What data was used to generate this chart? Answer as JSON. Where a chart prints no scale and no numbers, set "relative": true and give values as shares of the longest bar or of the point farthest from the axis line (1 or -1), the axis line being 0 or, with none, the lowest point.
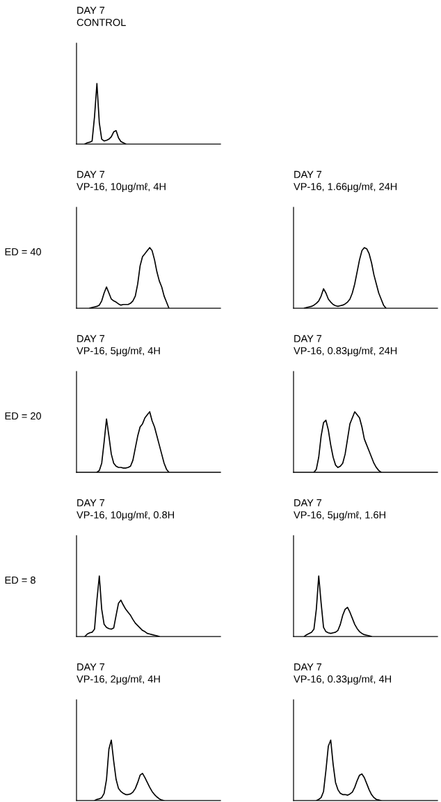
{
  "chart_data": [
    {
      "type": "line",
      "relative": true,
      "title": "DAY 7",
      "subtitle": "CONTROL",
      "categories": [
        null,
        null,
        null,
        null,
        null,
        null,
        null,
        null,
        null,
        null,
        null,
        null,
        null,
        null,
        null,
        null,
        null,
        null,
        null,
        null,
        null,
        null,
        null,
        null,
        null,
        null,
        null,
        null,
        null,
        null,
        null,
        null,
        null,
        null,
        null,
        null,
        null,
        null,
        null,
        null,
        null,
        null,
        null,
        null,
        null,
        null,
        null,
        null,
        null,
        null,
        null,
        null,
        null,
        null,
        null,
        null,
        null,
        null,
        null,
        null
      ],
      "series": [
        {
          "color": "#000000",
          "values": [
            null,
            null,
            null,
            0,
            0.02,
            0.03,
            0.05,
            0.45,
            1,
            0.35,
            0.08,
            0.05,
            0.06,
            0.08,
            0.12,
            0.2,
            0.22,
            0.1,
            0.04,
            0.02,
            0,
            null,
            null,
            null,
            null,
            null,
            null,
            null,
            null,
            null,
            null,
            null,
            null,
            null,
            null,
            null,
            null,
            null,
            null,
            null,
            null,
            null,
            null,
            null,
            null,
            null,
            null,
            null,
            null,
            null,
            null,
            null,
            null,
            null,
            null,
            null,
            null,
            null,
            null,
            null
          ]
        }
      ]
    },
    {
      "type": "line",
      "relative": true,
      "title": "DAY 7",
      "subtitle": "VP-16, 10μg/mℓ, 4H",
      "annotations": [
        "ED = 40"
      ],
      "categories": [
        null,
        null,
        null,
        null,
        null,
        null,
        null,
        null,
        null,
        null,
        null,
        null,
        null,
        null,
        null,
        null,
        null,
        null,
        null,
        null,
        null,
        null,
        null,
        null,
        null,
        null,
        null,
        null,
        null,
        null,
        null,
        null,
        null,
        null,
        null,
        null,
        null,
        null,
        null,
        null,
        null,
        null,
        null,
        null,
        null,
        null,
        null,
        null,
        null,
        null,
        null,
        null,
        null,
        null,
        null,
        null,
        null,
        null,
        null,
        null
      ],
      "series": [
        {
          "color": "#000000",
          "values": [
            null,
            null,
            null,
            null,
            null,
            0,
            0.01,
            0.02,
            0.03,
            0.05,
            0.12,
            0.25,
            0.35,
            0.25,
            0.15,
            0.12,
            0.1,
            0.07,
            0.05,
            0.06,
            0.06,
            0.06,
            0.08,
            0.12,
            0.2,
            0.4,
            0.7,
            0.85,
            0.9,
            0.95,
            1,
            0.95,
            0.8,
            0.6,
            0.45,
            0.35,
            0.2,
            0.1,
            0,
            null,
            null,
            null,
            null,
            null,
            null,
            null,
            null,
            null,
            null,
            null,
            null,
            null,
            null,
            null,
            null,
            null,
            null,
            null,
            null,
            null
          ]
        }
      ]
    },
    {
      "type": "line",
      "relative": true,
      "title": "DAY 7",
      "subtitle": "VP-16, 1.66μg/mℓ, 24H",
      "categories": [
        null,
        null,
        null,
        null,
        null,
        null,
        null,
        null,
        null,
        null,
        null,
        null,
        null,
        null,
        null,
        null,
        null,
        null,
        null,
        null,
        null,
        null,
        null,
        null,
        null,
        null,
        null,
        null,
        null,
        null,
        null,
        null,
        null,
        null,
        null,
        null,
        null,
        null,
        null,
        null,
        null,
        null,
        null,
        null,
        null,
        null,
        null,
        null,
        null,
        null,
        null,
        null,
        null,
        null,
        null,
        null,
        null,
        null,
        null,
        null
      ],
      "series": [
        {
          "color": "#000000",
          "values": [
            null,
            null,
            null,
            null,
            0,
            0.01,
            0.02,
            0.03,
            0.05,
            0.08,
            0.12,
            0.2,
            0.32,
            0.25,
            0.15,
            0.1,
            0.06,
            0.04,
            0.03,
            0.04,
            0.05,
            0.07,
            0.1,
            0.15,
            0.25,
            0.4,
            0.6,
            0.8,
            0.95,
            1,
            0.98,
            0.9,
            0.75,
            0.55,
            0.4,
            0.25,
            0.15,
            0.05,
            0,
            null,
            null,
            null,
            null,
            null,
            null,
            null,
            null,
            null,
            null,
            null,
            null,
            null,
            null,
            null,
            null,
            null,
            null,
            null,
            null,
            null
          ]
        }
      ]
    },
    {
      "type": "line",
      "relative": true,
      "title": "DAY 7",
      "subtitle": "VP-16, 5μg/mℓ, 4H",
      "annotations": [
        "ED = 20"
      ],
      "categories": [
        null,
        null,
        null,
        null,
        null,
        null,
        null,
        null,
        null,
        null,
        null,
        null,
        null,
        null,
        null,
        null,
        null,
        null,
        null,
        null,
        null,
        null,
        null,
        null,
        null,
        null,
        null,
        null,
        null,
        null,
        null,
        null,
        null,
        null,
        null,
        null,
        null,
        null,
        null,
        null,
        null,
        null,
        null,
        null,
        null,
        null,
        null,
        null,
        null,
        null,
        null,
        null,
        null,
        null,
        null,
        null,
        null,
        null,
        null,
        null
      ],
      "series": [
        {
          "color": "#000000",
          "values": [
            null,
            null,
            null,
            null,
            null,
            null,
            null,
            null,
            0,
            0.03,
            0.15,
            0.5,
            0.88,
            0.6,
            0.3,
            0.15,
            0.1,
            0.08,
            0.08,
            0.07,
            0.07,
            0.08,
            0.1,
            0.2,
            0.4,
            0.6,
            0.75,
            0.8,
            0.9,
            0.95,
            1,
            0.85,
            0.75,
            0.6,
            0.45,
            0.3,
            0.15,
            0.05,
            0,
            null,
            null,
            null,
            null,
            null,
            null,
            null,
            null,
            null,
            null,
            null,
            null,
            null,
            null,
            null,
            null,
            null,
            null,
            null,
            null,
            null
          ]
        }
      ]
    },
    {
      "type": "line",
      "relative": true,
      "title": "DAY 7",
      "subtitle": "VP-16, 0.83μg/mℓ, 24H",
      "categories": [
        null,
        null,
        null,
        null,
        null,
        null,
        null,
        null,
        null,
        null,
        null,
        null,
        null,
        null,
        null,
        null,
        null,
        null,
        null,
        null,
        null,
        null,
        null,
        null,
        null,
        null,
        null,
        null,
        null,
        null,
        null,
        null,
        null,
        null,
        null,
        null,
        null,
        null,
        null,
        null,
        null,
        null,
        null,
        null,
        null,
        null,
        null,
        null,
        null,
        null,
        null,
        null,
        null,
        null,
        null,
        null,
        null,
        null,
        null,
        null
      ],
      "series": [
        {
          "color": "#000000",
          "values": [
            null,
            null,
            null,
            null,
            null,
            null,
            null,
            null,
            0,
            0.05,
            0.25,
            0.6,
            0.82,
            0.86,
            0.7,
            0.45,
            0.25,
            0.12,
            0.08,
            0.1,
            0.15,
            0.3,
            0.55,
            0.8,
            0.9,
            1,
            0.95,
            0.9,
            0.75,
            0.55,
            0.45,
            0.35,
            0.25,
            0.15,
            0.08,
            0.03,
            0,
            null,
            null,
            null,
            null,
            null,
            null,
            null,
            null,
            null,
            null,
            null,
            null,
            null,
            null,
            null,
            null,
            null,
            null,
            null,
            null,
            null,
            null,
            null
          ]
        }
      ]
    },
    {
      "type": "line",
      "relative": true,
      "title": "DAY 7",
      "subtitle": "VP-16, 10μg/mℓ, 0.8H",
      "annotations": [
        "ED = 8"
      ],
      "categories": [
        null,
        null,
        null,
        null,
        null,
        null,
        null,
        null,
        null,
        null,
        null,
        null,
        null,
        null,
        null,
        null,
        null,
        null,
        null,
        null,
        null,
        null,
        null,
        null,
        null,
        null,
        null,
        null,
        null,
        null,
        null,
        null,
        null,
        null,
        null,
        null,
        null,
        null,
        null,
        null,
        null,
        null,
        null,
        null,
        null,
        null,
        null,
        null,
        null,
        null,
        null,
        null,
        null,
        null,
        null,
        null,
        null,
        null,
        null,
        null
      ],
      "series": [
        {
          "color": "#000000",
          "values": [
            null,
            null,
            null,
            0,
            0.04,
            0.06,
            0.07,
            0.12,
            0.6,
            1,
            0.45,
            0.2,
            0.15,
            0.13,
            0.12,
            0.14,
            0.35,
            0.55,
            0.6,
            0.52,
            0.45,
            0.4,
            0.35,
            0.28,
            0.22,
            0.18,
            0.14,
            0.1,
            0.08,
            0.05,
            0.04,
            0.03,
            0.02,
            0.01,
            0,
            null,
            null,
            null,
            null,
            null,
            null,
            null,
            null,
            null,
            null,
            null,
            null,
            null,
            null,
            null,
            null,
            null,
            null,
            null,
            null,
            null,
            null,
            null,
            null,
            null
          ]
        }
      ]
    },
    {
      "type": "line",
      "relative": true,
      "title": "DAY 7",
      "subtitle": "VP-16, 5μg/mℓ, 1.6H",
      "categories": [
        null,
        null,
        null,
        null,
        null,
        null,
        null,
        null,
        null,
        null,
        null,
        null,
        null,
        null,
        null,
        null,
        null,
        null,
        null,
        null,
        null,
        null,
        null,
        null,
        null,
        null,
        null,
        null,
        null,
        null,
        null,
        null,
        null,
        null,
        null,
        null,
        null,
        null,
        null,
        null,
        null,
        null,
        null,
        null,
        null,
        null,
        null,
        null,
        null,
        null,
        null,
        null,
        null,
        null,
        null,
        null,
        null,
        null,
        null,
        null
      ],
      "series": [
        {
          "color": "#000000",
          "values": [
            null,
            null,
            null,
            null,
            0,
            0.03,
            0.05,
            0.07,
            0.12,
            0.45,
            1,
            0.55,
            0.15,
            0.08,
            0.06,
            0.05,
            0.06,
            0.07,
            0.1,
            0.2,
            0.35,
            0.45,
            0.48,
            0.4,
            0.3,
            0.2,
            0.13,
            0.08,
            0.05,
            0.03,
            0.02,
            0.01,
            0,
            null,
            null,
            null,
            null,
            null,
            null,
            null,
            null,
            null,
            null,
            null,
            null,
            null,
            null,
            null,
            null,
            null,
            null,
            null,
            null,
            null,
            null,
            null,
            null,
            null,
            null,
            null
          ]
        }
      ]
    },
    {
      "type": "line",
      "relative": true,
      "title": "DAY 7",
      "subtitle": "VP-16, 2μg/mℓ, 4H",
      "categories": [
        null,
        null,
        null,
        null,
        null,
        null,
        null,
        null,
        null,
        null,
        null,
        null,
        null,
        null,
        null,
        null,
        null,
        null,
        null,
        null,
        null,
        null,
        null,
        null,
        null,
        null,
        null,
        null,
        null,
        null,
        null,
        null,
        null,
        null,
        null,
        null,
        null,
        null,
        null,
        null,
        null,
        null,
        null,
        null,
        null,
        null,
        null,
        null,
        null,
        null,
        null,
        null,
        null,
        null,
        null,
        null,
        null,
        null,
        null,
        null
      ],
      "series": [
        {
          "color": "#000000",
          "values": [
            null,
            null,
            null,
            null,
            null,
            null,
            null,
            0,
            0.02,
            0.03,
            0.05,
            0.12,
            0.35,
            0.85,
            1,
            0.65,
            0.35,
            0.2,
            0.15,
            0.12,
            0.1,
            0.1,
            0.11,
            0.14,
            0.2,
            0.3,
            0.42,
            0.45,
            0.38,
            0.3,
            0.22,
            0.15,
            0.1,
            0.06,
            0.03,
            0.01,
            0,
            null,
            null,
            null,
            null,
            null,
            null,
            null,
            null,
            null,
            null,
            null,
            null,
            null,
            null,
            null,
            null,
            null,
            null,
            null,
            null,
            null,
            null,
            null
          ]
        }
      ]
    },
    {
      "type": "line",
      "relative": true,
      "title": "DAY 7",
      "subtitle": "VP-16, 0.33μg/mℓ, 4H",
      "categories": [
        null,
        null,
        null,
        null,
        null,
        null,
        null,
        null,
        null,
        null,
        null,
        null,
        null,
        null,
        null,
        null,
        null,
        null,
        null,
        null,
        null,
        null,
        null,
        null,
        null,
        null,
        null,
        null,
        null,
        null,
        null,
        null,
        null,
        null,
        null,
        null,
        null,
        null,
        null,
        null,
        null,
        null,
        null,
        null,
        null,
        null,
        null,
        null,
        null,
        null,
        null,
        null,
        null,
        null,
        null,
        null,
        null,
        null,
        null,
        null
      ],
      "series": [
        {
          "color": "#000000",
          "values": [
            null,
            null,
            null,
            null,
            null,
            null,
            null,
            null,
            null,
            0,
            0.02,
            0.05,
            0.15,
            0.5,
            0.9,
            1,
            0.6,
            0.3,
            0.18,
            0.12,
            0.1,
            0.1,
            0.09,
            0.11,
            0.14,
            0.22,
            0.33,
            0.42,
            0.44,
            0.38,
            0.28,
            0.18,
            0.1,
            0.05,
            0.02,
            0.01,
            0,
            null,
            null,
            null,
            null,
            null,
            null,
            null,
            null,
            null,
            null,
            null,
            null,
            null,
            null,
            null,
            null,
            null,
            null,
            null,
            null,
            null,
            null,
            null
          ]
        }
      ]
    }
  ]
}
